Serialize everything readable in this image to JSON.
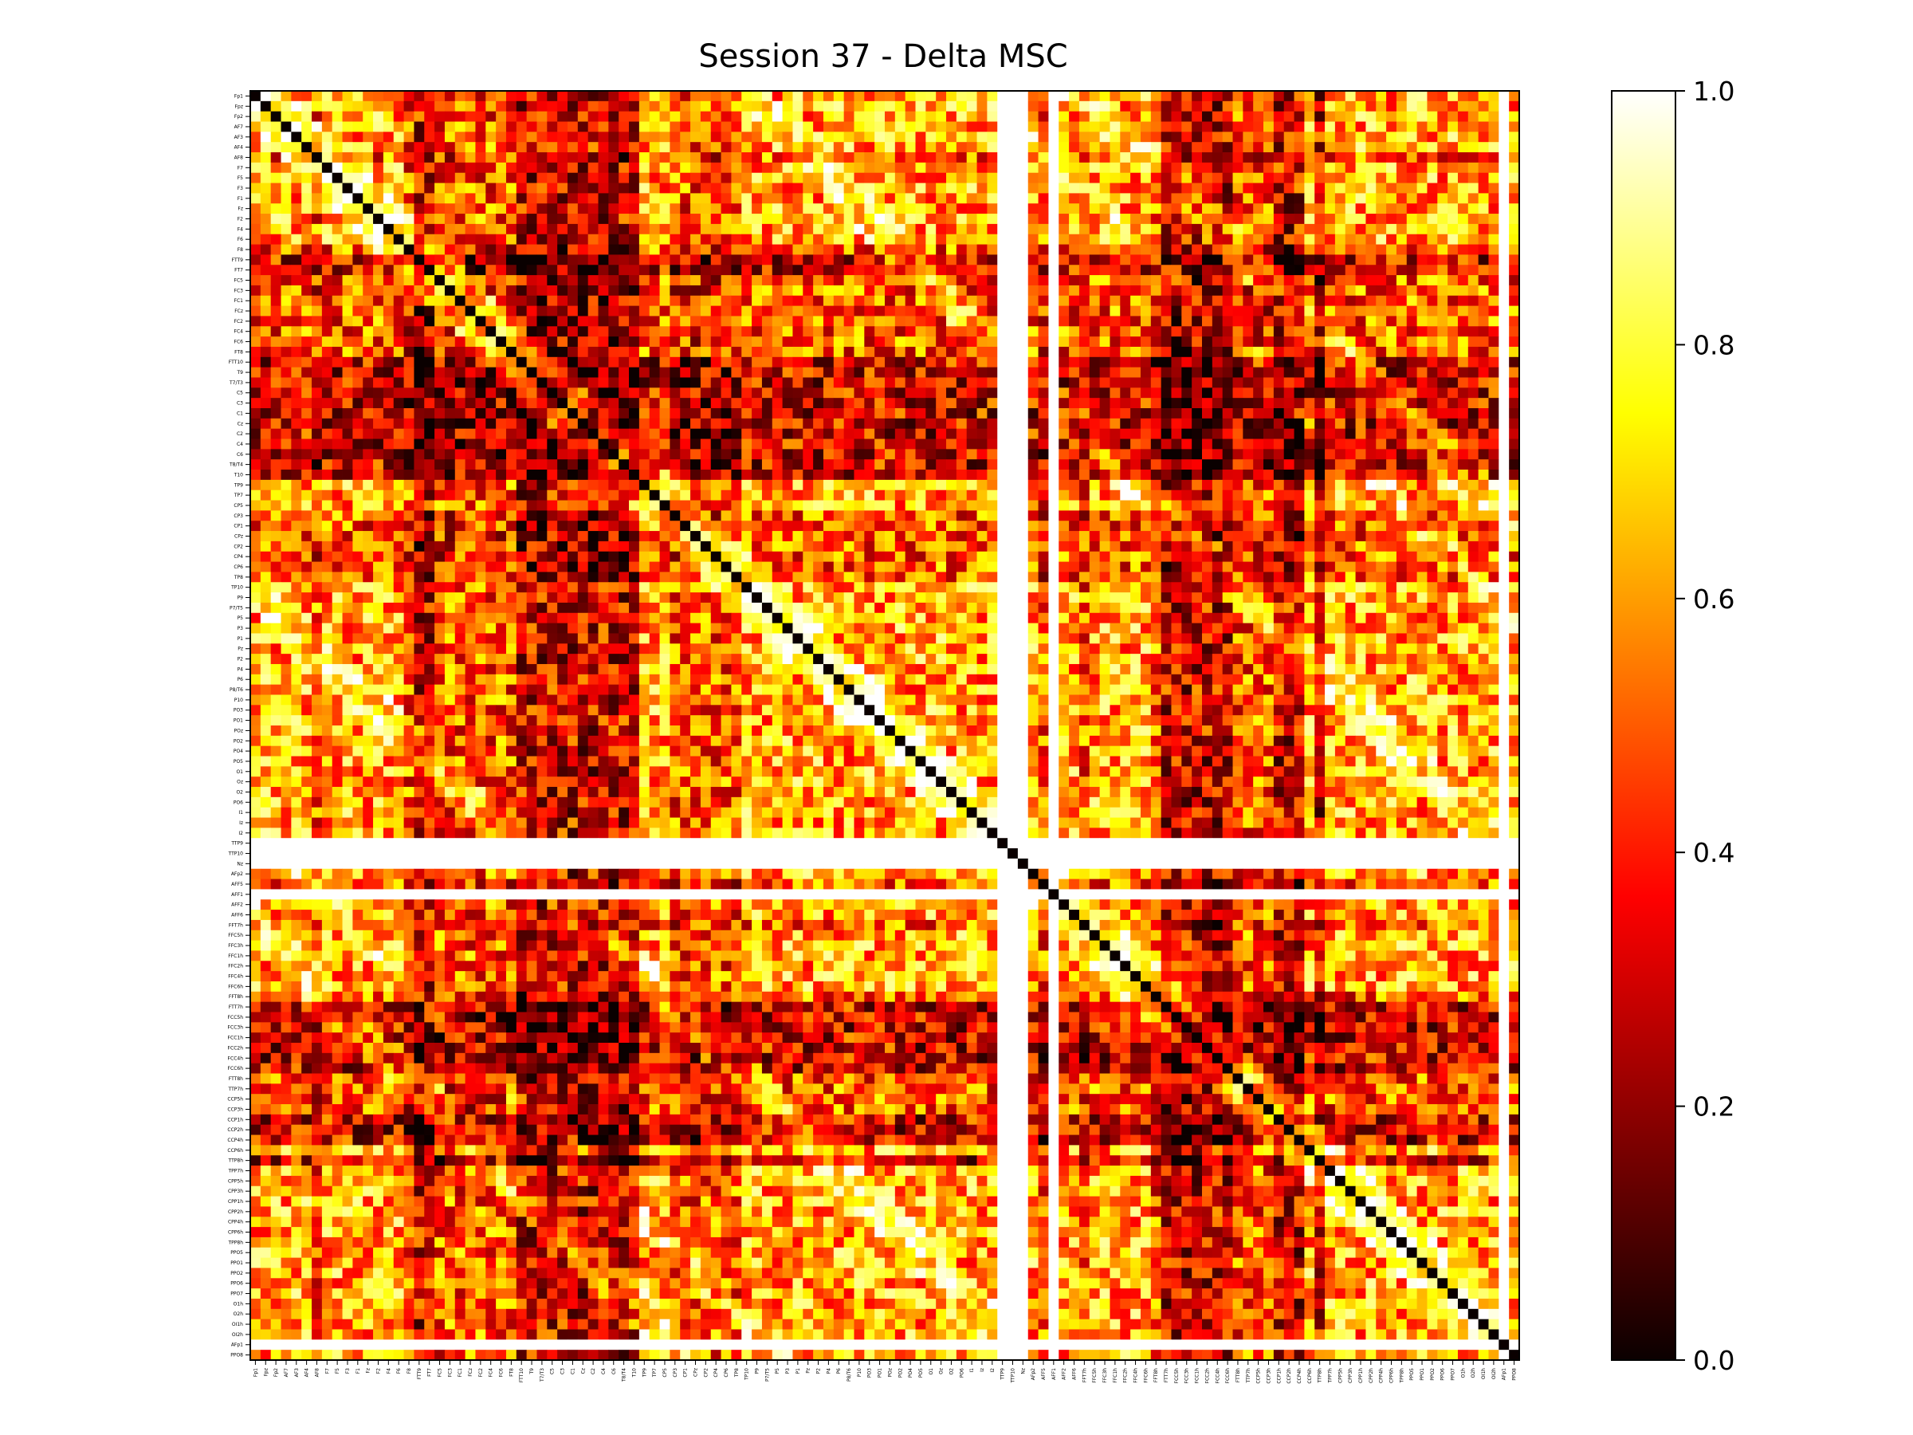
{
  "chart_data": {
    "type": "heatmap",
    "title": "Session 37 - Delta MSC",
    "xlabel": "",
    "ylabel": "",
    "colormap": "hot",
    "colorbar": {
      "range": [
        0.0,
        1.0
      ],
      "ticks": [
        "0.0",
        "0.2",
        "0.4",
        "0.6",
        "0.8",
        "1.0"
      ]
    },
    "channels": [
      "Fp1",
      "Fpz",
      "Fp2",
      "AF7",
      "AF3",
      "AF4",
      "AF8",
      "F7",
      "F5",
      "F3",
      "F1",
      "Fz",
      "F2",
      "F4",
      "F6",
      "F8",
      "FTT9",
      "FT7",
      "FC5",
      "FC3",
      "FC1",
      "FCz",
      "FC2",
      "FC4",
      "FC6",
      "FT8",
      "FTT10",
      "T9",
      "T7/T3",
      "C5",
      "C3",
      "C1",
      "Cz",
      "C2",
      "C4",
      "C6",
      "T8/T4",
      "T10",
      "TP9",
      "TP7",
      "CP5",
      "CP3",
      "CP1",
      "CPz",
      "CP2",
      "CP4",
      "CP6",
      "TP8",
      "TP10",
      "P9",
      "P7/T5",
      "P5",
      "P3",
      "P1",
      "Pz",
      "P2",
      "P4",
      "P6",
      "P8/T6",
      "P10",
      "PO3",
      "PO1",
      "POz",
      "PO2",
      "PO4",
      "PO5",
      "O1",
      "Oz",
      "O2",
      "PO6",
      "I1",
      "Iz",
      "I2",
      "TTP9",
      "TTP10",
      "Nz",
      "AFp2",
      "AFF5",
      "AFF1",
      "AFF2",
      "AFF6",
      "FFT7h",
      "FFC5h",
      "FFC3h",
      "FFC1h",
      "FFC2h",
      "FFC4h",
      "FFC6h",
      "FFT8h",
      "FTT7h",
      "FCC5h",
      "FCC3h",
      "FCC1h",
      "FCC2h",
      "FCC4h",
      "FCC6h",
      "FTT8h",
      "TTP7h",
      "CCP5h",
      "CCP3h",
      "CCP1h",
      "CCP2h",
      "CCP4h",
      "CCP6h",
      "TTP8h",
      "TPP7h",
      "CPP5h",
      "CPP3h",
      "CPP1h",
      "CPP2h",
      "CPP4h",
      "CPP6h",
      "TPP8h",
      "PPO5",
      "PPO1",
      "PPO2",
      "PPO6",
      "PPO7",
      "O1h",
      "O2h",
      "OI1h",
      "OI2h",
      "AFp1",
      "PPO8"
    ],
    "row_pattern": {
      "Fp1": "h",
      "Fpz": "h",
      "Fp2": "h",
      "AF7": "h",
      "AF3": "h",
      "AF4": "h",
      "AF8": "m",
      "F7": "h",
      "F5": "h",
      "F3": "h",
      "F1": "h",
      "Fz": "h",
      "F2": "h",
      "F4": "h",
      "F6": "h",
      "F8": "m",
      "FTT9": "l",
      "FT7": "l",
      "FC5": "m",
      "FC3": "m",
      "FC1": "m",
      "FCz": "m",
      "FC2": "m",
      "FC4": "m",
      "FC6": "m",
      "FT8": "m",
      "FTT10": "l",
      "T9": "l",
      "T7/T3": "l",
      "C5": "l",
      "C3": "l",
      "C1": "l",
      "Cz": "l",
      "C2": "l",
      "C4": "l",
      "C6": "l",
      "T8/T4": "l",
      "T10": "l",
      "TP9": "h",
      "TP7": "h",
      "CP5": "h",
      "CP3": "m",
      "CP1": "m",
      "CPz": "m",
      "CP2": "m",
      "CP4": "m",
      "CP6": "m",
      "TP8": "m",
      "TP10": "h",
      "P9": "h",
      "P7/T5": "h",
      "P5": "h",
      "P3": "h",
      "P1": "h",
      "Pz": "h",
      "P2": "h",
      "P4": "h",
      "P6": "h",
      "P8/T6": "h",
      "P10": "h",
      "PO3": "h",
      "PO1": "h",
      "POz": "h",
      "PO2": "h",
      "PO4": "h",
      "PO5": "h",
      "O1": "h",
      "Oz": "h",
      "O2": "h",
      "PO6": "h",
      "I1": "h",
      "Iz": "h",
      "I2": "h",
      "TTP9": "w",
      "TTP10": "w",
      "Nz": "w",
      "AFp2": "h",
      "AFF5": "m",
      "AFF1": "w",
      "AFF2": "h",
      "AFF6": "h",
      "FFT7h": "m",
      "FFC5h": "h",
      "FFC3h": "h",
      "FFC1h": "h",
      "FFC2h": "h",
      "FFC4h": "h",
      "FFC6h": "h",
      "FFT8h": "m",
      "FTT7h": "l",
      "FCC5h": "l",
      "FCC3h": "l",
      "FCC1h": "l",
      "FCC2h": "l",
      "FCC4h": "l",
      "FCC6h": "l",
      "FTT8h": "m",
      "TTP7h": "m",
      "CCP5h": "m",
      "CCP3h": "m",
      "CCP1h": "l",
      "CCP2h": "l",
      "CCP4h": "l",
      "CCP6h": "h",
      "TTP8h": "l",
      "TPP7h": "h",
      "CPP5h": "h",
      "CPP3h": "h",
      "CPP1h": "h",
      "CPP2h": "h",
      "CPP4h": "h",
      "CPP6h": "h",
      "TPP8h": "h",
      "PPO5": "h",
      "PPO1": "h",
      "PPO2": "h",
      "PPO6": "h",
      "PPO7": "h",
      "O1h": "h",
      "O2h": "h",
      "OI1h": "h",
      "OI2h": "h",
      "AFp1": "w",
      "PPO8": "h"
    },
    "group_level": {
      "h": 0.7,
      "m": 0.45,
      "l": 0.15
    },
    "white_rows_value": 1.0,
    "diagonal_value": 0.0
  }
}
